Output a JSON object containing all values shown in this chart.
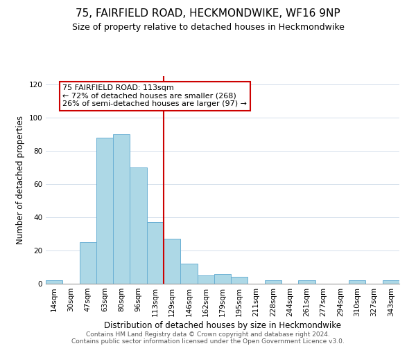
{
  "title": "75, FAIRFIELD ROAD, HECKMONDWIKE, WF16 9NP",
  "subtitle": "Size of property relative to detached houses in Heckmondwike",
  "xlabel": "Distribution of detached houses by size in Heckmondwike",
  "ylabel": "Number of detached properties",
  "bin_labels": [
    "14sqm",
    "30sqm",
    "47sqm",
    "63sqm",
    "80sqm",
    "96sqm",
    "113sqm",
    "129sqm",
    "146sqm",
    "162sqm",
    "179sqm",
    "195sqm",
    "211sqm",
    "228sqm",
    "244sqm",
    "261sqm",
    "277sqm",
    "294sqm",
    "310sqm",
    "327sqm",
    "343sqm"
  ],
  "bar_values": [
    2,
    0,
    25,
    88,
    90,
    70,
    37,
    27,
    12,
    5,
    6,
    4,
    0,
    2,
    0,
    2,
    0,
    0,
    2,
    0,
    2
  ],
  "bar_color": "#add8e6",
  "bar_edge_color": "#6ab0d4",
  "reference_line_x_label": "113sqm",
  "reference_line_color": "#cc0000",
  "annotation_text": "75 FAIRFIELD ROAD: 113sqm\n← 72% of detached houses are smaller (268)\n26% of semi-detached houses are larger (97) →",
  "annotation_box_edgecolor": "#cc0000",
  "annotation_box_facecolor": "#ffffff",
  "ylim": [
    0,
    125
  ],
  "yticks": [
    0,
    20,
    40,
    60,
    80,
    100,
    120
  ],
  "footer_line1": "Contains HM Land Registry data © Crown copyright and database right 2024.",
  "footer_line2": "Contains public sector information licensed under the Open Government Licence v3.0.",
  "title_fontsize": 11,
  "subtitle_fontsize": 9,
  "axis_label_fontsize": 8.5,
  "tick_fontsize": 7.5,
  "annotation_fontsize": 8,
  "footer_fontsize": 6.5
}
